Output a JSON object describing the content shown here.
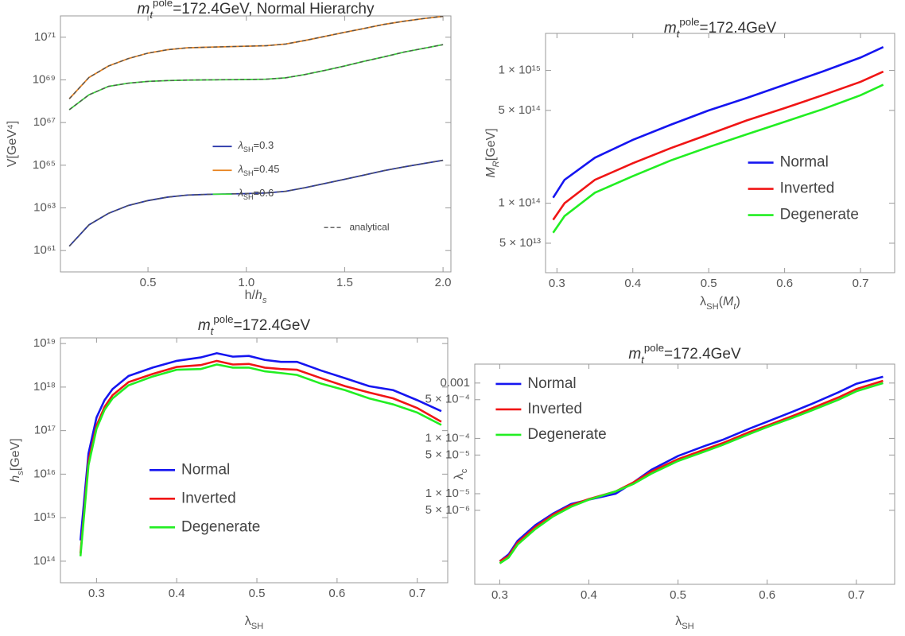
{
  "chart_data": [
    {
      "type": "line",
      "title": [
        {
          "text": "m",
          "style": "italic"
        },
        {
          "text": "t",
          "style": "sub-italic"
        },
        {
          "text": "pole",
          "style": "sup"
        },
        {
          "text": "=172.4GeV, Normal Hierarchy"
        }
      ],
      "x_label": [
        {
          "text": "h/"
        },
        {
          "text": "h",
          "style": "italic"
        },
        {
          "text": "s",
          "style": "sub-italic"
        }
      ],
      "y_label": "V[GeV⁴]",
      "x": [
        0.1,
        0.2,
        0.3,
        0.4,
        0.5,
        0.6,
        0.7,
        0.8,
        0.9,
        1.0,
        1.1,
        1.2,
        1.3,
        1.4,
        1.5,
        1.6,
        1.7,
        1.8,
        1.9,
        2.0
      ],
      "series": [
        {
          "name": [
            {
              "text": "λ",
              "style": "italic"
            },
            {
              "text": "SH",
              "style": "sub"
            },
            {
              "text": "=0.3"
            }
          ],
          "color": "#2432a8",
          "values": [
            1.6e+61,
            1.6e+62,
            5.6e+62,
            1.3e+63,
            2.2e+63,
            3.2e+63,
            4e+63,
            4.3e+63,
            4.5e+63,
            4.7e+63,
            5e+63,
            6e+63,
            8.9e+63,
            1.4e+64,
            2.2e+64,
            3.5e+64,
            5.6e+64,
            8.3e+64,
            1.2e+65,
            1.7e+65
          ]
        },
        {
          "name": [
            {
              "text": "λ",
              "style": "italic"
            },
            {
              "text": "SH",
              "style": "sub"
            },
            {
              "text": "=0.45"
            }
          ],
          "color": "#e8821e",
          "values": [
            1.3e+68,
            1.3e+69,
            4.5e+69,
            1e+70,
            1.8e+70,
            2.6e+70,
            3.2e+70,
            3.4e+70,
            3.6e+70,
            3.8e+70,
            4e+70,
            4.8e+70,
            7.1e+70,
            1.1e+71,
            1.7e+71,
            2.6e+71,
            4e+71,
            5.6e+71,
            7.5e+71,
            9.5e+71
          ]
        },
        {
          "name": [
            {
              "text": "λ",
              "style": "italic"
            },
            {
              "text": "SH",
              "style": "sub"
            },
            {
              "text": "=0.6"
            }
          ],
          "color": "#3ddc3d",
          "values": [
            4e+67,
            2e+68,
            5e+68,
            7e+68,
            8.5e+68,
            9.3e+68,
            9.8e+68,
            1e+69,
            1.02e+69,
            1.04e+69,
            1.08e+69,
            1.25e+69,
            1.8e+69,
            2.8e+69,
            4.5e+69,
            7.5e+69,
            1.2e+70,
            2e+70,
            3e+70,
            4.5e+70
          ]
        },
        {
          "name": "analytical",
          "color": "#555555",
          "dash": true,
          "values": [
            1.6e+61,
            1.6e+62,
            5.6e+62,
            1.3e+63,
            2.2e+63,
            3.2e+63,
            4e+63,
            4.3e+63,
            4.5e+63,
            4.7e+63,
            5e+63,
            6e+63,
            8.9e+63,
            1.4e+64,
            2.2e+64,
            3.5e+64,
            5.6e+64,
            8.3e+64,
            1.2e+65,
            1.7e+65
          ]
        },
        {
          "color": "#555555",
          "dash": true,
          "values": [
            1.3e+68,
            1.3e+69,
            4.5e+69,
            1e+70,
            1.8e+70,
            2.6e+70,
            3.2e+70,
            3.4e+70,
            3.6e+70,
            3.8e+70,
            4e+70,
            4.8e+70,
            7.1e+70,
            1.1e+71,
            1.7e+71,
            2.6e+71,
            4e+71,
            5.6e+71,
            7.5e+71,
            9.5e+71
          ]
        },
        {
          "color": "#555555",
          "dash": true,
          "values": [
            4e+67,
            2e+68,
            5e+68,
            7e+68,
            8.5e+68,
            9.3e+68,
            9.8e+68,
            1e+69,
            1.02e+69,
            1.04e+69,
            1.08e+69,
            1.25e+69,
            1.8e+69,
            2.8e+69,
            4.5e+69,
            7.5e+69,
            1.2e+70,
            2e+70,
            3e+70,
            4.5e+70
          ]
        }
      ],
      "xlim": [
        0.055,
        2.04
      ],
      "xticks": [
        0.5,
        {
          "value": 1,
          "label": "1.0"
        },
        1.5,
        {
          "value": 2,
          "label": "2.0"
        }
      ],
      "ylim": [
        1e+60,
        1e+72
      ],
      "log_y": true,
      "yticks": [
        {
          "value": 1e+61,
          "label": "10⁶¹"
        },
        {
          "value": 1e+63,
          "label": "10⁶³"
        },
        {
          "value": 1e+65,
          "label": "10⁶⁵"
        },
        {
          "value": 1e+67,
          "label": "10⁶⁷"
        },
        {
          "value": 1e+69,
          "label": "10⁶⁹"
        },
        {
          "value": 1e+71,
          "label": "10⁷¹"
        }
      ],
      "grid": false,
      "legend": "center"
    },
    {
      "type": "line",
      "title": [
        {
          "text": "m",
          "style": "italic"
        },
        {
          "text": "t",
          "style": "sub-italic"
        },
        {
          "text": "pole",
          "style": "sup"
        },
        {
          "text": "=172.4GeV"
        }
      ],
      "x_label": [
        {
          "text": "λ"
        },
        {
          "text": "SH",
          "style": "sub"
        },
        {
          "text": "("
        },
        {
          "text": "M",
          "style": "italic"
        },
        {
          "text": "t",
          "style": "sub-italic"
        },
        {
          "text": ")"
        }
      ],
      "y_label": [
        {
          "text": "M",
          "style": "italic"
        },
        {
          "text": "R",
          "style": "sub-italic"
        },
        {
          "text": "[GeV]"
        }
      ],
      "x": [
        0.295,
        0.31,
        0.35,
        0.4,
        0.45,
        0.5,
        0.55,
        0.6,
        0.65,
        0.7,
        0.73
      ],
      "series": [
        {
          "name": "Normal",
          "color": "#1515f0",
          "values": [
            110000000000000.0,
            150000000000000.0,
            220000000000000.0,
            300000000000000.0,
            390000000000000.0,
            500000000000000.0,
            620000000000000.0,
            780000000000000.0,
            980000000000000.0,
            1250000000000000.0,
            1500000000000000.0
          ]
        },
        {
          "name": "Inverted",
          "color": "#f01515",
          "values": [
            75000000000000.0,
            100000000000000.0,
            150000000000000.0,
            200000000000000.0,
            260000000000000.0,
            330000000000000.0,
            420000000000000.0,
            520000000000000.0,
            650000000000000.0,
            820000000000000.0,
            980000000000000.0
          ]
        },
        {
          "name": "Degenerate",
          "color": "#22ee22",
          "values": [
            60000000000000.0,
            80000000000000.0,
            120000000000000.0,
            160000000000000.0,
            210000000000000.0,
            265000000000000.0,
            330000000000000.0,
            410000000000000.0,
            510000000000000.0,
            650000000000000.0,
            780000000000000.0
          ]
        }
      ],
      "xlim": [
        0.285,
        0.745
      ],
      "xticks": [
        0.3,
        0.4,
        0.5,
        0.6,
        0.7
      ],
      "ylim": [
        30000000000000.0,
        1900000000000000.0
      ],
      "log_y": true,
      "yticks": [
        {
          "value": 50000000000000.0,
          "label": "5 × 10¹³"
        },
        {
          "value": 100000000000000.0,
          "label": "1 × 10¹⁴"
        },
        {
          "value": 500000000000000.0,
          "label": "5 × 10¹⁴"
        },
        {
          "value": 1000000000000000.0,
          "label": "1 × 10¹⁵"
        }
      ],
      "grid": false,
      "legend": "center-right"
    },
    {
      "type": "line",
      "title": [
        {
          "text": "m",
          "style": "italic"
        },
        {
          "text": "t",
          "style": "sub-italic"
        },
        {
          "text": "pole",
          "style": "sup"
        },
        {
          "text": "=172.4GeV"
        }
      ],
      "x_label": [
        {
          "text": "λ"
        },
        {
          "text": "SH",
          "style": "sub"
        }
      ],
      "y_label": [
        {
          "text": "h",
          "style": "italic"
        },
        {
          "text": "s",
          "style": "sub-italic"
        },
        {
          "text": "[GeV]"
        }
      ],
      "x": [
        0.28,
        0.29,
        0.3,
        0.31,
        0.32,
        0.34,
        0.37,
        0.4,
        0.43,
        0.45,
        0.47,
        0.49,
        0.51,
        0.53,
        0.55,
        0.58,
        0.61,
        0.64,
        0.67,
        0.7,
        0.73
      ],
      "series": [
        {
          "name": "Normal",
          "color": "#1515f0",
          "values": [
            300000000000000.0,
            3e+16,
            2e+17,
            5e+17,
            9e+17,
            1.8e+18,
            2.8e+18,
            4e+18,
            4.8e+18,
            6e+18,
            5e+18,
            5.2e+18,
            4.2e+18,
            3.8e+18,
            3.8e+18,
            2.4e+18,
            1.6e+18,
            1.05e+18,
            8.5e+17,
            5e+17,
            2.8e+17
          ]
        },
        {
          "name": "Inverted",
          "color": "#f01515",
          "values": [
            150000000000000.0,
            2e+16,
            1.3e+17,
            3.5e+17,
            6.5e+17,
            1.3e+18,
            2e+18,
            2.9e+18,
            3.2e+18,
            4e+18,
            3.3e+18,
            3.4e+18,
            2.8e+18,
            2.6e+18,
            2.5e+18,
            1.6e+18,
            1.05e+18,
            7.5e+17,
            5.5e+17,
            3.3e+17,
            1.6e+17
          ]
        },
        {
          "name": "Degenerate",
          "color": "#22ee22",
          "values": [
            130000000000000.0,
            1.6e+16,
            1.1e+17,
            3e+17,
            5.5e+17,
            1.1e+18,
            1.75e+18,
            2.5e+18,
            2.6e+18,
            3.3e+18,
            2.8e+18,
            2.8e+18,
            2.3e+18,
            2.1e+18,
            1.9e+18,
            1.2e+18,
            8.5e+17,
            5.5e+17,
            4e+17,
            2.6e+17,
            1.35e+17
          ]
        }
      ],
      "xlim": [
        0.255,
        0.738
      ],
      "xticks": [
        0.3,
        0.4,
        0.5,
        0.6,
        0.7
      ],
      "ylim": [
        32000000000000.0,
        1.35e+19
      ],
      "log_y": true,
      "yticks": [
        {
          "value": 100000000000000.0,
          "label": "10¹⁴"
        },
        {
          "value": 1000000000000000.0,
          "label": "10¹⁵"
        },
        {
          "value": 1e+16,
          "label": "10¹⁶"
        },
        {
          "value": 1e+17,
          "label": "10¹⁷"
        },
        {
          "value": 1e+18,
          "label": "10¹⁸"
        },
        {
          "value": 1e+19,
          "label": "10¹⁹"
        }
      ],
      "grid": false,
      "legend": "center-left"
    },
    {
      "type": "line",
      "title": [
        {
          "text": "m",
          "style": "italic"
        },
        {
          "text": "t",
          "style": "sub-italic"
        },
        {
          "text": "pole",
          "style": "sup"
        },
        {
          "text": "=172.4GeV"
        }
      ],
      "x_label": [
        {
          "text": "λ"
        },
        {
          "text": "SH",
          "style": "sub"
        }
      ],
      "y_label": [
        {
          "text": "λ"
        },
        {
          "text": "c",
          "style": "sub"
        }
      ],
      "x": [
        0.3,
        0.31,
        0.32,
        0.34,
        0.36,
        0.38,
        0.4,
        0.43,
        0.45,
        0.47,
        0.5,
        0.53,
        0.55,
        0.58,
        0.6,
        0.63,
        0.65,
        0.68,
        0.7,
        0.73
      ],
      "series": [
        {
          "name": "Normal",
          "color": "#1515f0",
          "values": [
            6e-07,
            8e-07,
            1.4e-06,
            2.7e-06,
            4.4e-06,
            6.5e-06,
            7.8e-06,
            1e-05,
            1.6e-05,
            2.7e-05,
            4.8e-05,
            7.3e-05,
            9.4e-05,
            0.00015,
            0.0002,
            0.00031,
            0.00042,
            0.00068,
            0.00097,
            0.0013
          ]
        },
        {
          "name": "Inverted",
          "color": "#f01515",
          "values": [
            6e-07,
            7.5e-07,
            1.3e-06,
            2.5e-06,
            4.2e-06,
            6.2e-06,
            8e-06,
            1.1e-05,
            1.6e-05,
            2.5e-05,
            4.2e-05,
            6.3e-05,
            8.2e-05,
            0.00013,
            0.00017,
            0.00026,
            0.00035,
            0.00055,
            0.00078,
            0.0011
          ]
        },
        {
          "name": "Degenerate",
          "color": "#22ee22",
          "values": [
            5.5e-07,
            7e-07,
            1.2e-06,
            2.3e-06,
            3.9e-06,
            5.8e-06,
            7.8e-06,
            1.1e-05,
            1.5e-05,
            2.3e-05,
            3.9e-05,
            5.8e-05,
            7.6e-05,
            0.00012,
            0.00016,
            0.00024,
            0.00032,
            0.0005,
            0.00071,
            0.001
          ]
        }
      ],
      "xlim": [
        0.272,
        0.743
      ],
      "xticks": [
        0.3,
        0.4,
        0.5,
        0.6,
        0.7
      ],
      "ylim": [
        2.3e-07,
        0.0022
      ],
      "log_y": true,
      "yticks": [
        {
          "value": 5e-06,
          "label": "5 × 10⁻⁶"
        },
        {
          "value": 1e-05,
          "label": "1 × 10⁻⁵"
        },
        {
          "value": 5e-05,
          "label": "5 × 10⁻⁵"
        },
        {
          "value": 0.0001,
          "label": "1 × 10⁻⁴"
        },
        {
          "value": 0.0005,
          "label": "5 × 10⁻⁴"
        },
        0.001
      ],
      "grid": false,
      "legend": "upper-left"
    }
  ]
}
